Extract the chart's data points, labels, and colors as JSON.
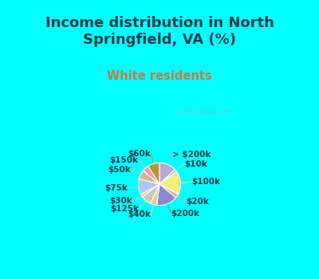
{
  "title": "Income distribution in North\nSpringfield, VA (%)",
  "subtitle": "White residents",
  "title_color": "#1a3a4a",
  "subtitle_color": "#c87840",
  "bg_cyan": "#00ffff",
  "bg_chart": "#e0f0e8",
  "watermark": "ⓘ City-Data.com",
  "labels": [
    "> $200k",
    "$10k",
    "$100k",
    "$20k",
    "$200k",
    "$40k",
    "$125k",
    "$30k",
    "$75k",
    "$50k",
    "$150k",
    "$60k"
  ],
  "values": [
    13,
    2,
    18,
    3,
    16,
    5,
    8,
    2,
    12,
    7,
    5,
    9
  ],
  "colors": [
    "#b8a8d8",
    "#a8d8a8",
    "#f0f080",
    "#e8a0b0",
    "#8888cc",
    "#e8d090",
    "#c8c8b8",
    "#f0b870",
    "#a8c8f0",
    "#d0b898",
    "#e8a0a8",
    "#b89830"
  ],
  "startangle": 90,
  "title_fontsize": 13,
  "subtitle_fontsize": 10.5,
  "label_fontsize": 7.5
}
